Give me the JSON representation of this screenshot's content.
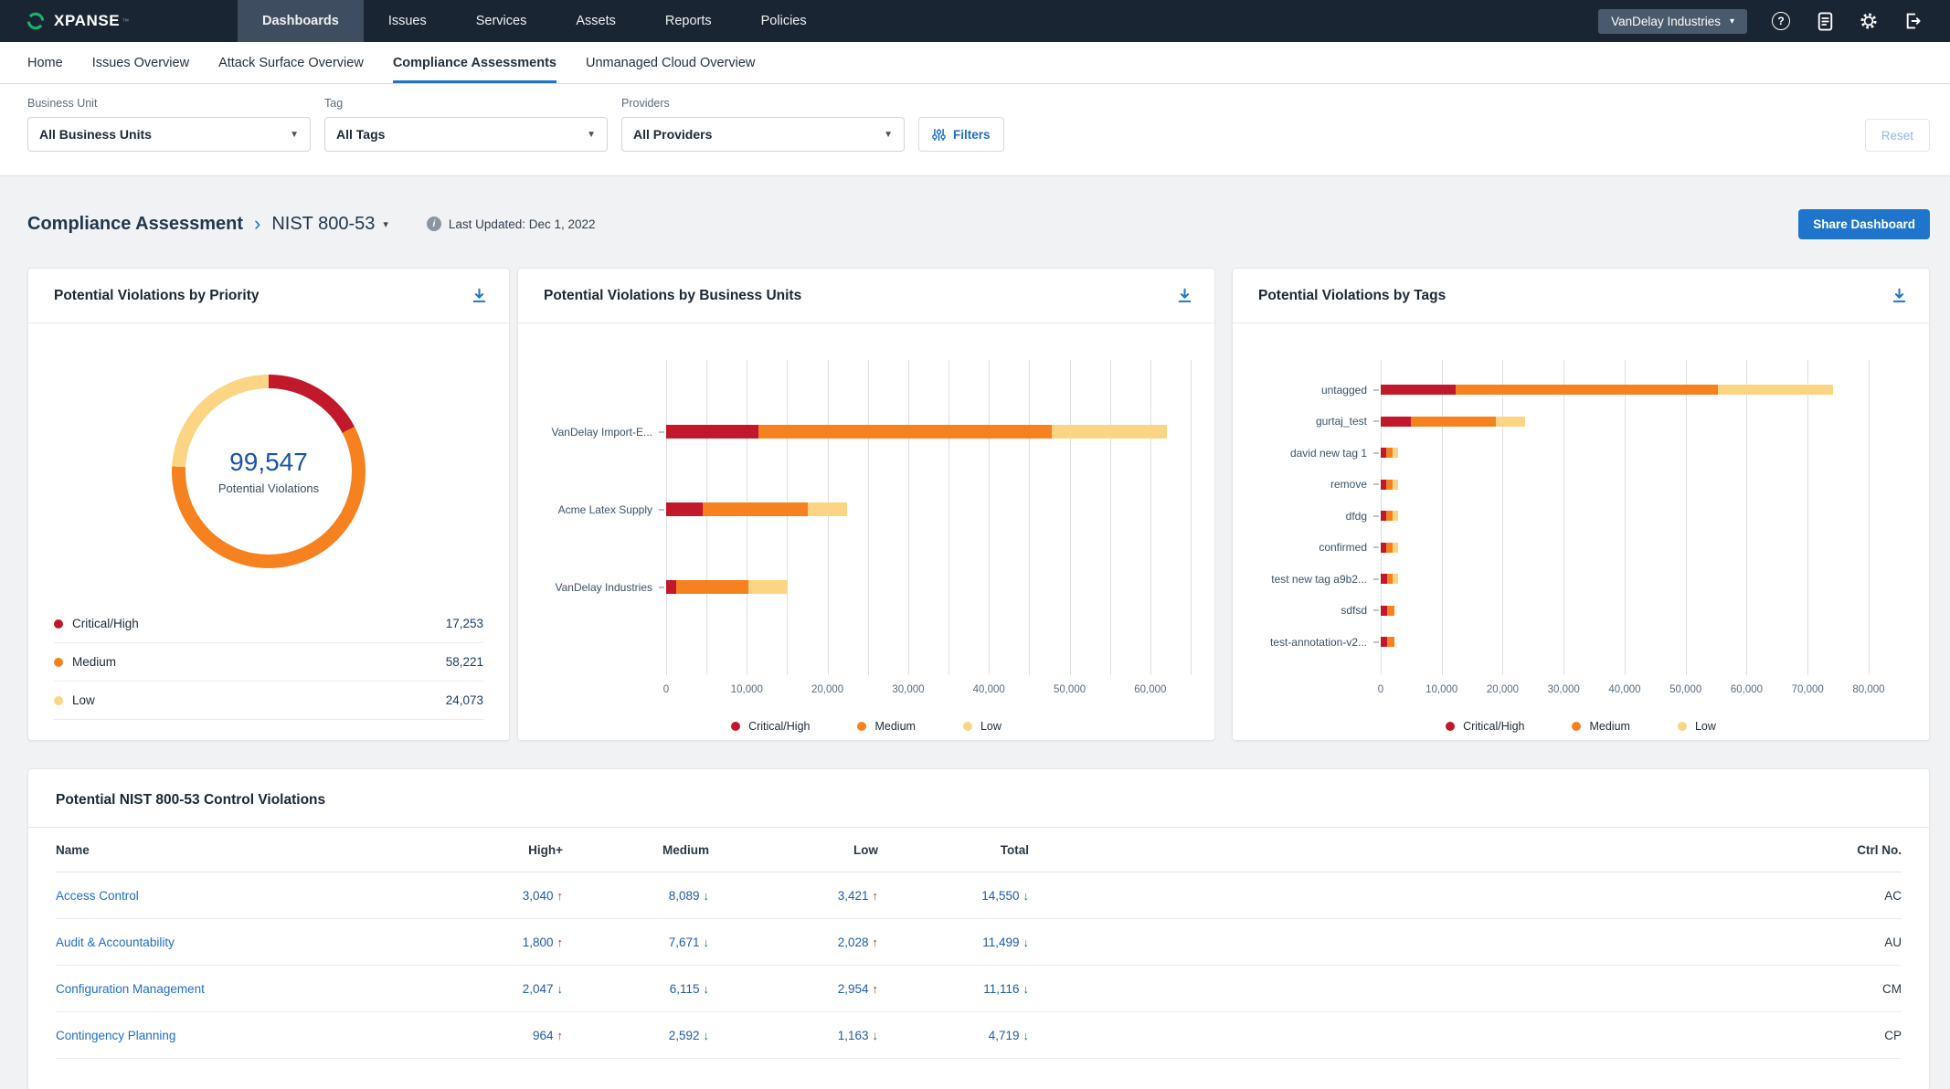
{
  "top_nav": {
    "brand": "XPANSE",
    "brand_mark": "™",
    "items": [
      {
        "label": "Dashboards",
        "active": true
      },
      {
        "label": "Issues",
        "active": false
      },
      {
        "label": "Services",
        "active": false
      },
      {
        "label": "Assets",
        "active": false
      },
      {
        "label": "Reports",
        "active": false
      },
      {
        "label": "Policies",
        "active": false
      }
    ],
    "account_label": "VanDelay Industries",
    "icons": [
      "help-icon",
      "release-notes-icon",
      "settings-icon",
      "logout-icon"
    ]
  },
  "tabs": [
    {
      "label": "Home",
      "active": false
    },
    {
      "label": "Issues Overview",
      "active": false
    },
    {
      "label": "Attack Surface Overview",
      "active": false
    },
    {
      "label": "Compliance Assessments",
      "active": true
    },
    {
      "label": "Unmanaged Cloud Overview",
      "active": false
    }
  ],
  "filters": {
    "business_unit": {
      "label": "Business Unit",
      "value": "All Business Units"
    },
    "tag": {
      "label": "Tag",
      "value": "All Tags"
    },
    "providers": {
      "label": "Providers",
      "value": "All Providers"
    },
    "filters_button": "Filters",
    "reset_button": "Reset"
  },
  "page_header": {
    "breadcrumb_root": "Compliance Assessment",
    "breadcrumb_current": "NIST 800-53",
    "last_updated": "Last Updated: Dec 1, 2022",
    "share_button": "Share Dashboard"
  },
  "colors": {
    "critical": "#c2182b",
    "medium": "#f6821f",
    "low": "#fbd584",
    "accent_blue": "#1f75cb"
  },
  "chart_data": [
    {
      "type": "pie",
      "donut": true,
      "title": "Potential Violations by Priority",
      "categories": [
        "Critical/High",
        "Medium",
        "Low"
      ],
      "values": [
        17253,
        58221,
        24073
      ],
      "colors": [
        "#c2182b",
        "#f6821f",
        "#fbd584"
      ],
      "total": 99547,
      "center_label": "Potential Violations",
      "legend_position": "bottom-list"
    },
    {
      "type": "bar",
      "orientation": "horizontal",
      "stacked": true,
      "title": "Potential Violations by Business Units",
      "categories": [
        "VanDelay Import-E...",
        "Acme Latex Supply",
        "VanDelay Industries"
      ],
      "series": [
        {
          "name": "Critical/High",
          "color": "#c2182b",
          "values": [
            11453,
            4500,
            1300
          ]
        },
        {
          "name": "Medium",
          "color": "#f6821f",
          "values": [
            36321,
            13000,
            8900
          ]
        },
        {
          "name": "Low",
          "color": "#fbd584",
          "values": [
            14273,
            4900,
            4900
          ]
        }
      ],
      "xlim": [
        0,
        65000
      ],
      "grid_step": 5000,
      "label_step": 10000,
      "grid": true,
      "legend_position": "bottom"
    },
    {
      "type": "bar",
      "orientation": "horizontal",
      "stacked": true,
      "title": "Potential Violations by Tags",
      "categories": [
        "untagged",
        "gurtaj_test",
        "david new tag 1",
        "remove",
        "dfdg",
        "confirmed",
        "test new tag a9b2...",
        "sdfsd",
        "test-annotation-v2..."
      ],
      "series": [
        {
          "name": "Critical/High",
          "color": "#c2182b",
          "values": [
            12300,
            4900,
            900,
            900,
            900,
            900,
            1000,
            1000,
            1000
          ]
        },
        {
          "name": "Medium",
          "color": "#f6821f",
          "values": [
            43000,
            14000,
            1000,
            1000,
            1000,
            1000,
            1000,
            1200,
            1200
          ]
        },
        {
          "name": "Low",
          "color": "#fbd584",
          "values": [
            18800,
            4700,
            900,
            900,
            900,
            900,
            800,
            0,
            0
          ]
        }
      ],
      "xlim": [
        0,
        86000
      ],
      "grid_step": 10000,
      "label_step": 10000,
      "grid": true,
      "legend_position": "bottom"
    }
  ],
  "table": {
    "title": "Potential NIST 800-53 Control Violations",
    "columns": [
      "Name",
      "High+",
      "Medium",
      "Low",
      "Total",
      "Ctrl No."
    ],
    "rows": [
      {
        "name": "Access Control",
        "high": 3040,
        "high_dir": "up",
        "medium": 8089,
        "medium_dir": "down",
        "low": 3421,
        "low_dir": "up",
        "total": 14550,
        "total_dir": "down",
        "ctrl": "AC"
      },
      {
        "name": "Audit & Accountability",
        "high": 1800,
        "high_dir": "up",
        "medium": 7671,
        "medium_dir": "down",
        "low": 2028,
        "low_dir": "up",
        "total": 11499,
        "total_dir": "down",
        "ctrl": "AU"
      },
      {
        "name": "Configuration Management",
        "high": 2047,
        "high_dir": "down",
        "medium": 6115,
        "medium_dir": "down",
        "low": 2954,
        "low_dir": "up",
        "total": 11116,
        "total_dir": "down",
        "ctrl": "CM"
      },
      {
        "name": "Contingency Planning",
        "high": 964,
        "high_dir": "up",
        "medium": 2592,
        "medium_dir": "down",
        "low": 1163,
        "low_dir": "down",
        "total": 4719,
        "total_dir": "down",
        "ctrl": "CP"
      }
    ]
  }
}
